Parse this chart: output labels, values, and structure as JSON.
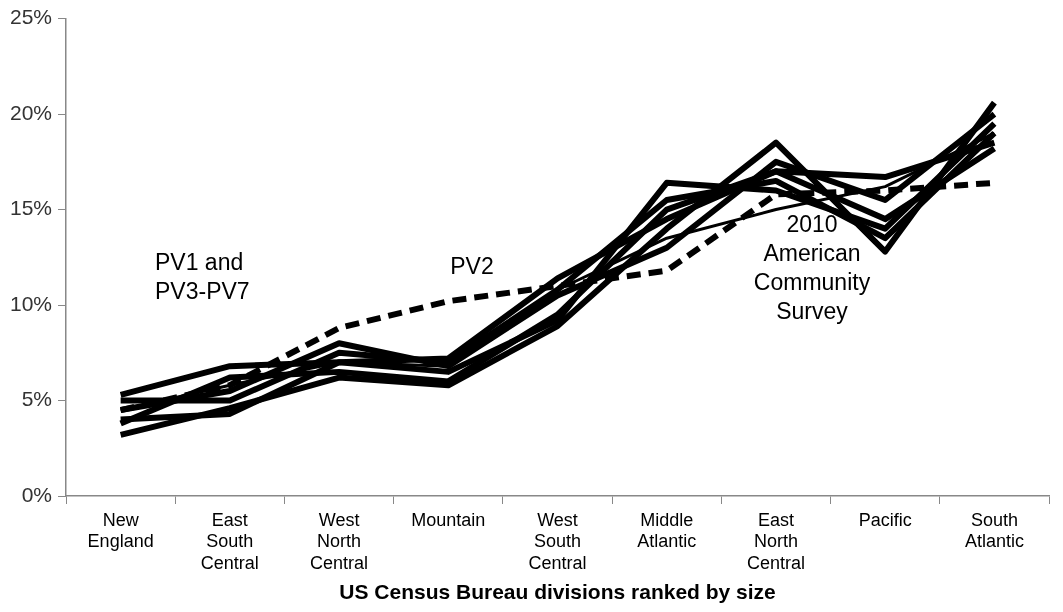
{
  "chart_data": {
    "type": "line",
    "xlabel": "US Census Bureau divisions ranked by size",
    "categories": [
      "New England",
      "East South Central",
      "West North Central",
      "Mountain",
      "West South Central",
      "Middle Atlantic",
      "East North Central",
      "Pacific",
      "South Atlantic"
    ],
    "ylim": [
      0,
      25
    ],
    "yticks": [
      {
        "value": 0,
        "label": "0%"
      },
      {
        "value": 5,
        "label": "5%"
      },
      {
        "value": 10,
        "label": "10%"
      },
      {
        "value": 15,
        "label": "15%"
      },
      {
        "value": 20,
        "label": "20%"
      },
      {
        "value": 25,
        "label": "25%"
      }
    ],
    "grid": false,
    "legend": false,
    "marker": "none",
    "series": [
      {
        "color": "#000000",
        "line_style": "solid",
        "values": [
          5.3,
          6.8,
          7.0,
          7.2,
          11.4,
          14.5,
          17.0,
          16.7,
          18.5
        ]
      },
      {
        "color": "#000000",
        "line_style": "solid",
        "values": [
          3.2,
          4.6,
          6.2,
          5.8,
          8.9,
          14.0,
          18.5,
          12.8,
          20.6
        ]
      },
      {
        "color": "#000000",
        "line_style": "solid",
        "values": [
          4.0,
          4.3,
          7.0,
          6.5,
          9.2,
          16.4,
          16.0,
          14.0,
          19.5
        ]
      },
      {
        "color": "#000000",
        "line_style": "solid",
        "values": [
          4.5,
          5.5,
          8.0,
          6.8,
          10.5,
          13.0,
          17.5,
          15.5,
          20.0
        ]
      },
      {
        "color": "#000000",
        "line_style": "solid",
        "values": [
          3.8,
          6.2,
          6.5,
          6.0,
          9.5,
          15.0,
          17.0,
          14.5,
          18.2
        ]
      },
      {
        "color": "#000000",
        "line_style": "solid",
        "values": [
          5.0,
          5.0,
          7.5,
          7.0,
          10.8,
          15.5,
          16.5,
          13.5,
          19.0
        ]
      },
      {
        "color": "#000000",
        "line_style": "dashed",
        "values": [
          4.5,
          5.8,
          8.8,
          10.2,
          11.0,
          11.8,
          15.8,
          16.0,
          16.4
        ]
      },
      {
        "color": "#000000",
        "line_style": "solid",
        "values": [
          4.5,
          5.8,
          7.0,
          6.8,
          10.8,
          13.5,
          15.0,
          16.2,
          19.0
        ]
      }
    ],
    "annotations": [
      "PV1 and PV3-PV7",
      "PV2",
      "2010 American Community Survey"
    ]
  }
}
